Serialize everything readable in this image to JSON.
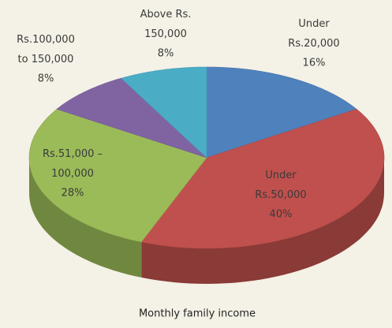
{
  "chart_data": {
    "type": "pie",
    "title": "Monthly family income",
    "categories": [
      "Under\nRs.20,000",
      "Under\nRs.50,000",
      "Rs.51,000 –\n100,000",
      "Rs.100,000\nto 150,000",
      "Above Rs.\n150,000"
    ],
    "values": [
      16,
      40,
      28,
      8,
      8
    ],
    "value_labels": [
      "16%",
      "40%",
      "28%",
      "8%",
      "8%"
    ],
    "colors": [
      "#4f81bd",
      "#c0504d",
      "#9bbb59",
      "#8064a2",
      "#4bacc6"
    ]
  }
}
